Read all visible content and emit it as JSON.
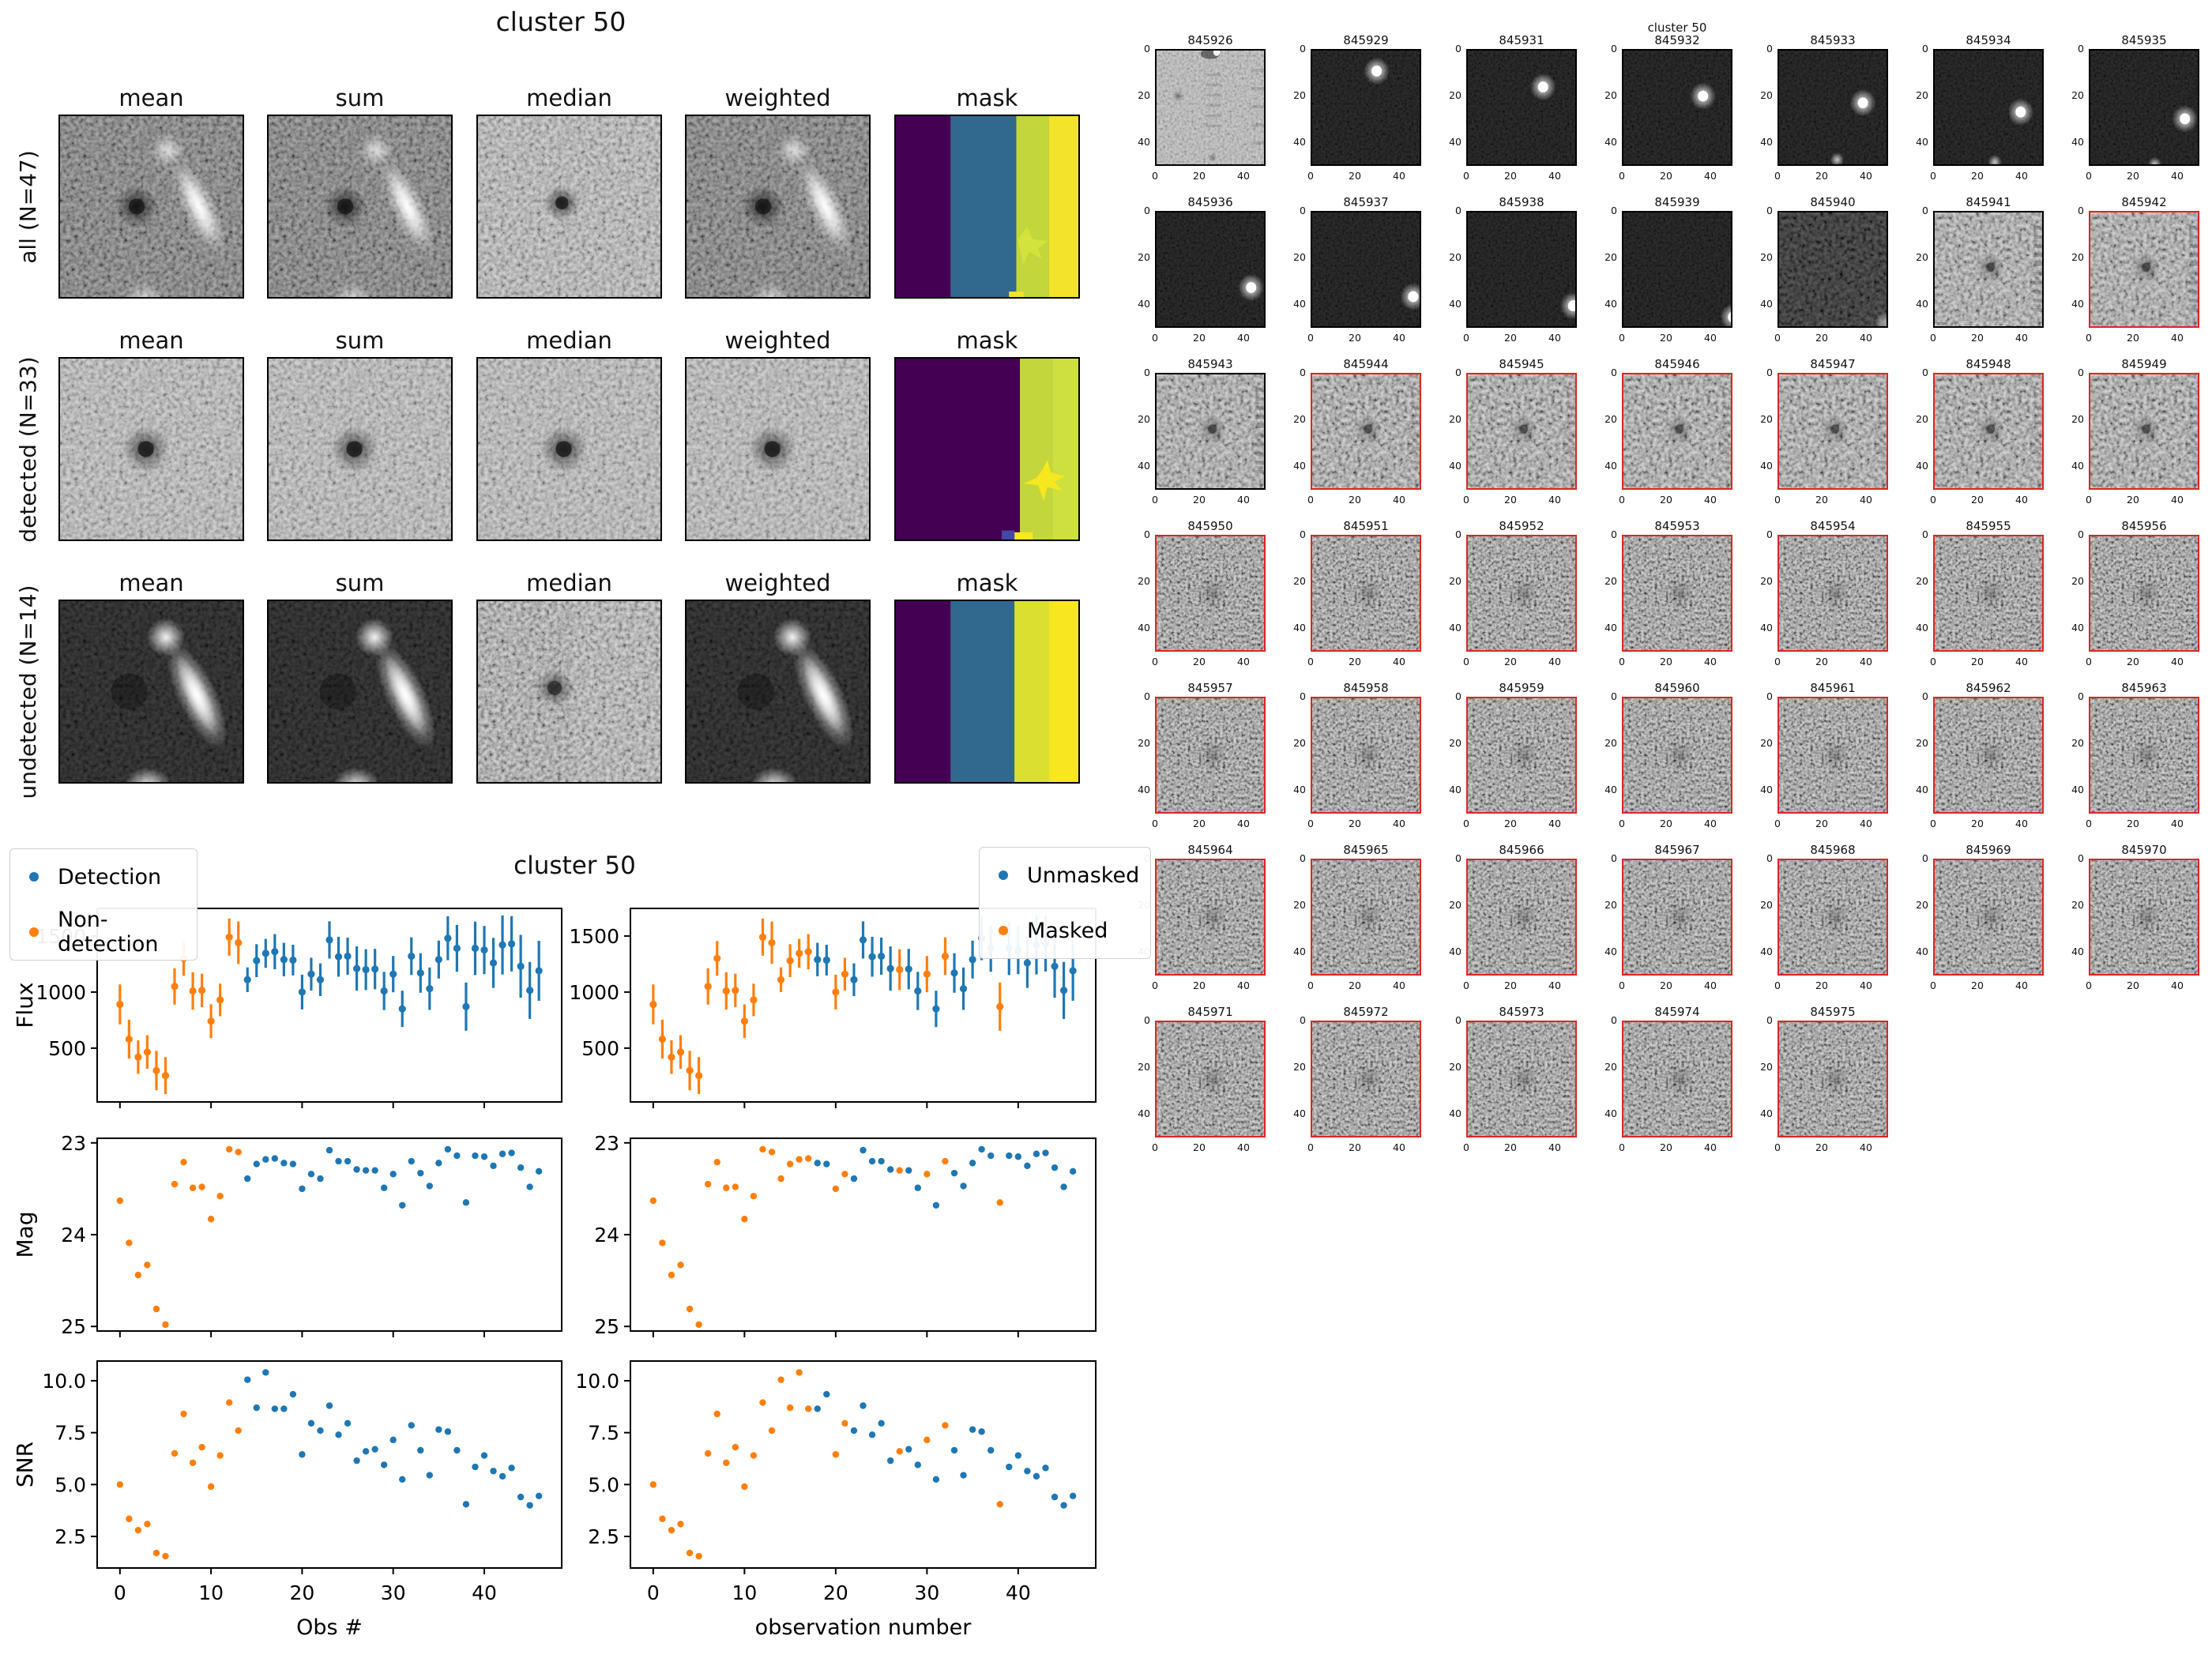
{
  "palette": {
    "blue": "#1f77b4",
    "orange": "#ff7f0e",
    "masked_border": "#e02424",
    "frame": "#000000",
    "mask_purple": "#440154",
    "mask_blue": "#31688e",
    "mask_green_yellow": "#c3d63c",
    "mask_yellow": "#f4e32b"
  },
  "cutout_figure": {
    "title": "cluster 50",
    "column_titles": [
      "mean",
      "sum",
      "median",
      "weighted",
      "mask"
    ],
    "rows": [
      {
        "label": "all (N=47)",
        "cells": [
          "deep",
          "deep",
          "medlight",
          "deep",
          "mask_all"
        ]
      },
      {
        "label": "detected (N=33)",
        "cells": [
          "det",
          "det",
          "det",
          "det",
          "mask_det"
        ]
      },
      {
        "label": "undetected (N=14)",
        "cells": [
          "undet",
          "undet",
          "undet_med",
          "undet",
          "mask_undet"
        ]
      }
    ]
  },
  "scatter_figure": {
    "title": "cluster 50",
    "legend_detection": [
      {
        "label": "Detection",
        "color": "#1f77b4"
      },
      {
        "label": "Non-detection",
        "color": "#ff7f0e"
      }
    ],
    "legend_masking": [
      {
        "label": "Unmasked",
        "color": "#1f77b4"
      },
      {
        "label": "Masked",
        "color": "#ff7f0e"
      }
    ]
  },
  "chart_data": {
    "type": "scatter",
    "title": "cluster 50",
    "xlabel_left": "Obs #",
    "xlabel_right": "observation number",
    "xticks": [
      0,
      10,
      20,
      30,
      40
    ],
    "xlim": [
      -2.5,
      48.5
    ],
    "x": [
      0,
      1,
      2,
      3,
      4,
      5,
      6,
      7,
      8,
      9,
      10,
      11,
      12,
      13,
      14,
      15,
      16,
      17,
      18,
      19,
      20,
      21,
      22,
      23,
      24,
      25,
      26,
      27,
      28,
      29,
      30,
      31,
      32,
      33,
      34,
      35,
      36,
      37,
      38,
      39,
      40,
      41,
      42,
      43,
      44,
      45,
      46
    ],
    "flux": [
      890,
      580,
      420,
      465,
      300,
      255,
      1050,
      1300,
      1010,
      1015,
      740,
      930,
      1490,
      1440,
      1110,
      1280,
      1345,
      1360,
      1290,
      1285,
      1000,
      1160,
      1110,
      1465,
      1315,
      1320,
      1210,
      1200,
      1205,
      1010,
      1160,
      850,
      1320,
      1170,
      1030,
      1290,
      1480,
      1390,
      870,
      1390,
      1375,
      1260,
      1420,
      1430,
      1230,
      1015,
      1190
    ],
    "flux_err": [
      178,
      173,
      150,
      150,
      176,
      165,
      162,
      155,
      167,
      149,
      151,
      145,
      166,
      189,
      110,
      147,
      129,
      157,
      149,
      137,
      155,
      146,
      146,
      166,
      178,
      166,
      197,
      182,
      180,
      170,
      162,
      162,
      168,
      176,
      189,
      169,
      196,
      209,
      215,
      238,
      215,
      223,
      263,
      247,
      280,
      254,
      267
    ],
    "mag": [
      23.63,
      24.09,
      24.44,
      24.33,
      24.81,
      24.98,
      23.45,
      23.21,
      23.49,
      23.48,
      23.83,
      23.58,
      23.07,
      23.1,
      23.39,
      23.23,
      23.18,
      23.17,
      23.22,
      23.23,
      23.5,
      23.34,
      23.39,
      23.08,
      23.2,
      23.2,
      23.29,
      23.3,
      23.3,
      23.49,
      23.34,
      23.68,
      23.2,
      23.33,
      23.47,
      23.22,
      23.07,
      23.14,
      23.65,
      23.14,
      23.15,
      23.25,
      23.12,
      23.11,
      23.27,
      23.48,
      23.31
    ],
    "snr": [
      5.0,
      3.35,
      2.8,
      3.1,
      1.7,
      1.55,
      6.5,
      8.4,
      6.05,
      6.8,
      4.9,
      6.4,
      8.95,
      7.6,
      10.05,
      8.7,
      10.4,
      8.65,
      8.65,
      9.35,
      6.45,
      7.95,
      7.6,
      8.8,
      7.4,
      7.95,
      6.15,
      6.6,
      6.7,
      5.95,
      7.15,
      5.25,
      7.85,
      6.65,
      5.45,
      7.65,
      7.55,
      6.65,
      4.05,
      5.85,
      6.4,
      5.65,
      5.4,
      5.8,
      4.4,
      4.0,
      4.45
    ],
    "detected": [
      false,
      false,
      false,
      false,
      false,
      false,
      false,
      false,
      false,
      false,
      false,
      false,
      false,
      false,
      true,
      true,
      true,
      true,
      true,
      true,
      true,
      true,
      true,
      true,
      true,
      true,
      true,
      true,
      true,
      true,
      true,
      true,
      true,
      true,
      true,
      true,
      true,
      true,
      true,
      true,
      true,
      true,
      true,
      true,
      true,
      true,
      true
    ],
    "masked": [
      true,
      true,
      true,
      true,
      true,
      true,
      true,
      true,
      true,
      true,
      true,
      true,
      true,
      true,
      true,
      true,
      true,
      true,
      false,
      false,
      true,
      true,
      false,
      false,
      false,
      false,
      false,
      true,
      false,
      false,
      true,
      false,
      true,
      false,
      false,
      false,
      false,
      false,
      true,
      false,
      false,
      false,
      false,
      false,
      false,
      false,
      false
    ],
    "subplots": [
      {
        "key": "flux",
        "ylabel": "Flux",
        "yticks": [
          500,
          1000,
          1500
        ],
        "ylim": [
          20,
          1746
        ],
        "errorbars": true
      },
      {
        "key": "mag",
        "ylabel": "Mag",
        "yticks": [
          23,
          24,
          25
        ],
        "ylim": [
          25.05,
          22.95
        ],
        "inverted": true
      },
      {
        "key": "snr",
        "ylabel": "SNR",
        "yticks": [
          2.5,
          5.0,
          7.5,
          10.0
        ],
        "ylim": [
          0.98,
          10.95
        ]
      }
    ],
    "legend_left": [
      "Detection",
      "Non-detection"
    ],
    "legend_right": [
      "Unmasked",
      "Masked"
    ]
  },
  "thumbnail_figure": {
    "title": "cluster 50",
    "x_ticks": [
      0,
      20,
      40
    ],
    "y_ticks": [
      0,
      20,
      40
    ],
    "thumbs": [
      {
        "id": "845926",
        "masked": false,
        "kind": "flat"
      },
      {
        "id": "845929",
        "masked": false,
        "kind": "psf",
        "blob": [
          30,
          9
        ]
      },
      {
        "id": "845931",
        "masked": false,
        "kind": "psf",
        "blob": [
          35,
          16
        ]
      },
      {
        "id": "845932",
        "masked": false,
        "kind": "psf",
        "blob": [
          37,
          20
        ]
      },
      {
        "id": "845933",
        "masked": false,
        "kind": "psf",
        "blob": [
          39,
          23
        ],
        "blob2": [
          27,
          48
        ]
      },
      {
        "id": "845934",
        "masked": false,
        "kind": "psf",
        "blob": [
          40,
          27
        ],
        "blob2": [
          28,
          49
        ]
      },
      {
        "id": "845935",
        "masked": false,
        "kind": "psf",
        "blob": [
          44,
          30
        ],
        "blob2": [
          30,
          50
        ]
      },
      {
        "id": "845936",
        "masked": false,
        "kind": "psf",
        "blob": [
          44,
          33
        ]
      },
      {
        "id": "845937",
        "masked": false,
        "kind": "psf",
        "blob": [
          47,
          37
        ]
      },
      {
        "id": "845938",
        "masked": false,
        "kind": "psf",
        "blob": [
          49,
          41
        ]
      },
      {
        "id": "845939",
        "masked": false,
        "kind": "psf",
        "blob": [
          51,
          46
        ]
      },
      {
        "id": "845940",
        "masked": false,
        "kind": "dark"
      },
      {
        "id": "845941",
        "masked": false,
        "kind": "noiseA"
      },
      {
        "id": "845942",
        "masked": true,
        "kind": "noiseA"
      },
      {
        "id": "845943",
        "masked": false,
        "kind": "noiseA"
      },
      {
        "id": "845944",
        "masked": true,
        "kind": "noiseB"
      },
      {
        "id": "845945",
        "masked": true,
        "kind": "noiseB"
      },
      {
        "id": "845946",
        "masked": true,
        "kind": "noiseB"
      },
      {
        "id": "845947",
        "masked": true,
        "kind": "noiseB"
      },
      {
        "id": "845948",
        "masked": true,
        "kind": "noiseB"
      },
      {
        "id": "845949",
        "masked": true,
        "kind": "noiseB"
      },
      {
        "id": "845950",
        "masked": true,
        "kind": "noiseC"
      },
      {
        "id": "845951",
        "masked": true,
        "kind": "noiseC"
      },
      {
        "id": "845952",
        "masked": true,
        "kind": "noiseC"
      },
      {
        "id": "845953",
        "masked": true,
        "kind": "noiseC"
      },
      {
        "id": "845954",
        "masked": true,
        "kind": "noiseC"
      },
      {
        "id": "845955",
        "masked": true,
        "kind": "noiseC"
      },
      {
        "id": "845956",
        "masked": true,
        "kind": "noiseC"
      },
      {
        "id": "845957",
        "masked": true,
        "kind": "noiseC"
      },
      {
        "id": "845958",
        "masked": true,
        "kind": "noiseC"
      },
      {
        "id": "845959",
        "masked": true,
        "kind": "noiseC"
      },
      {
        "id": "845960",
        "masked": true,
        "kind": "noiseC"
      },
      {
        "id": "845961",
        "masked": true,
        "kind": "noiseC"
      },
      {
        "id": "845962",
        "masked": true,
        "kind": "noiseC"
      },
      {
        "id": "845963",
        "masked": true,
        "kind": "noiseC"
      },
      {
        "id": "845964",
        "masked": true,
        "kind": "noiseC"
      },
      {
        "id": "845965",
        "masked": true,
        "kind": "noiseC"
      },
      {
        "id": "845966",
        "masked": true,
        "kind": "noiseC"
      },
      {
        "id": "845967",
        "masked": true,
        "kind": "noiseC"
      },
      {
        "id": "845968",
        "masked": true,
        "kind": "noiseC"
      },
      {
        "id": "845969",
        "masked": true,
        "kind": "noiseC"
      },
      {
        "id": "845970",
        "masked": true,
        "kind": "noiseC"
      },
      {
        "id": "845971",
        "masked": true,
        "kind": "noiseC"
      },
      {
        "id": "845972",
        "masked": true,
        "kind": "noiseC"
      },
      {
        "id": "845973",
        "masked": true,
        "kind": "noiseC"
      },
      {
        "id": "845974",
        "masked": true,
        "kind": "noiseC"
      },
      {
        "id": "845975",
        "masked": true,
        "kind": "noiseC"
      }
    ]
  }
}
